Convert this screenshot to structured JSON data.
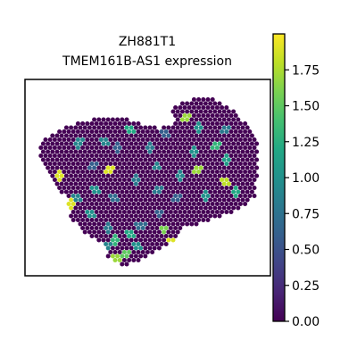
{
  "chart_data": {
    "type": "scatter",
    "subtype": "spatial-spot-heatmap",
    "title_lines": [
      "ZH881T1",
      "TMEM161B-AS1 expression"
    ],
    "xlabel": "",
    "ylabel": "",
    "colormap": "viridis",
    "color_range": [
      0.0,
      2.0
    ],
    "colorbar": {
      "ticks": [
        0.0,
        0.25,
        0.5,
        0.75,
        1.0,
        1.25,
        1.5,
        1.75
      ],
      "tick_labels": [
        "0.00",
        "0.25",
        "0.50",
        "0.75",
        "1.00",
        "1.25",
        "1.50",
        "1.75"
      ]
    },
    "grid": false,
    "legend": "colorbar-right",
    "background_value": 0.0,
    "highlight_spots": [
      {
        "x": 0.42,
        "y": 0.24,
        "value": 1.2
      },
      {
        "x": 0.31,
        "y": 0.3,
        "value": 0.9
      },
      {
        "x": 0.2,
        "y": 0.31,
        "value": 0.9
      },
      {
        "x": 0.37,
        "y": 0.33,
        "value": 0.6
      },
      {
        "x": 0.51,
        "y": 0.33,
        "value": 0.8
      },
      {
        "x": 0.67,
        "y": 0.17,
        "value": 1.7
      },
      {
        "x": 0.72,
        "y": 0.22,
        "value": 1.0
      },
      {
        "x": 0.8,
        "y": 0.32,
        "value": 1.3
      },
      {
        "x": 0.7,
        "y": 0.36,
        "value": 1.0
      },
      {
        "x": 0.84,
        "y": 0.4,
        "value": 1.1
      },
      {
        "x": 0.12,
        "y": 0.49,
        "value": 1.9
      },
      {
        "x": 0.33,
        "y": 0.46,
        "value": 1.9
      },
      {
        "x": 0.45,
        "y": 0.51,
        "value": 0.8
      },
      {
        "x": 0.54,
        "y": 0.44,
        "value": 0.9
      },
      {
        "x": 0.65,
        "y": 0.49,
        "value": 0.9
      },
      {
        "x": 0.72,
        "y": 0.46,
        "value": 1.7
      },
      {
        "x": 0.84,
        "y": 0.53,
        "value": 1.8
      },
      {
        "x": 0.88,
        "y": 0.58,
        "value": 1.2
      },
      {
        "x": 0.19,
        "y": 0.61,
        "value": 0.9
      },
      {
        "x": 0.27,
        "y": 0.57,
        "value": 1.0
      },
      {
        "x": 0.35,
        "y": 0.62,
        "value": 0.7
      },
      {
        "x": 0.55,
        "y": 0.57,
        "value": 0.8
      },
      {
        "x": 0.63,
        "y": 0.62,
        "value": 0.6
      },
      {
        "x": 0.76,
        "y": 0.6,
        "value": 1.0
      },
      {
        "x": 0.16,
        "y": 0.65,
        "value": 1.9
      },
      {
        "x": 0.25,
        "y": 0.7,
        "value": 1.0
      },
      {
        "x": 0.33,
        "y": 0.78,
        "value": 0.8
      },
      {
        "x": 0.42,
        "y": 0.82,
        "value": 1.2
      },
      {
        "x": 0.47,
        "y": 0.76,
        "value": 0.7
      },
      {
        "x": 0.57,
        "y": 0.79,
        "value": 1.6
      },
      {
        "x": 0.36,
        "y": 0.85,
        "value": 1.3
      },
      {
        "x": 0.32,
        "y": 0.88,
        "value": 0.9
      },
      {
        "x": 0.4,
        "y": 0.92,
        "value": 1.5
      },
      {
        "x": 0.45,
        "y": 0.88,
        "value": 1.0
      },
      {
        "x": 0.36,
        "y": 0.95,
        "value": 1.7
      },
      {
        "x": 0.61,
        "y": 0.86,
        "value": 1.9
      },
      {
        "x": 0.55,
        "y": 0.7,
        "value": 0.6
      },
      {
        "x": 0.58,
        "y": 0.25,
        "value": 0.6
      },
      {
        "x": 0.26,
        "y": 0.44,
        "value": 0.6
      },
      {
        "x": 0.84,
        "y": 0.23,
        "value": 0.8
      }
    ]
  }
}
